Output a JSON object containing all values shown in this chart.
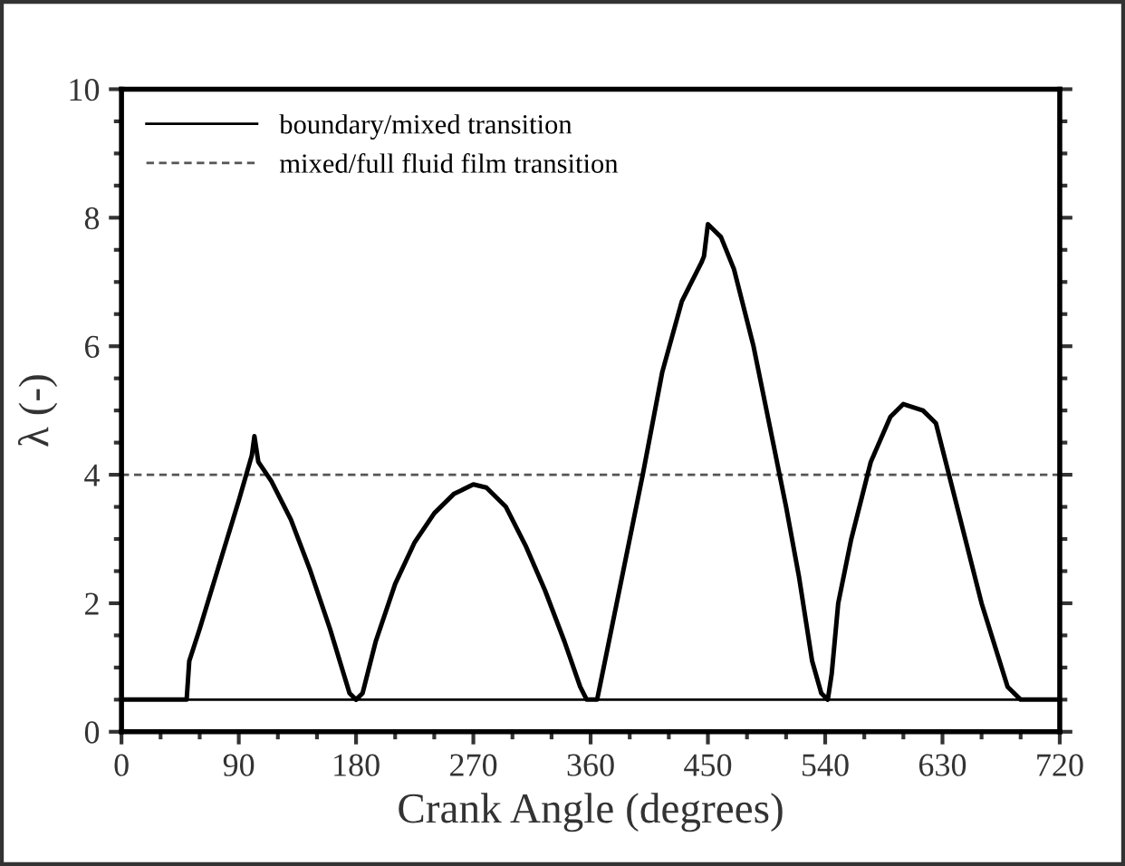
{
  "chart_data": {
    "type": "line",
    "xlabel": "Crank Angle (degrees)",
    "ylabel": "λ (-)",
    "series": [
      {
        "color": "#000000",
        "x": [
          0,
          50,
          52,
          60,
          75,
          90,
          100,
          102,
          105,
          115,
          130,
          145,
          160,
          175,
          180,
          185,
          195,
          210,
          225,
          240,
          255,
          270,
          280,
          295,
          310,
          325,
          340,
          352,
          357,
          365,
          372,
          385,
          400,
          415,
          430,
          445,
          447,
          450,
          460,
          470,
          485,
          500,
          510,
          520,
          530,
          537,
          542,
          545,
          550,
          560,
          575,
          590,
          600,
          615,
          625,
          640,
          660,
          680,
          690,
          720
        ],
        "values": [
          0.5,
          0.5,
          1.1,
          1.6,
          2.6,
          3.6,
          4.3,
          4.6,
          4.2,
          3.9,
          3.3,
          2.5,
          1.6,
          0.6,
          0.5,
          0.6,
          1.4,
          2.3,
          2.95,
          3.4,
          3.7,
          3.85,
          3.8,
          3.5,
          2.9,
          2.2,
          1.4,
          0.7,
          0.5,
          0.5,
          1.2,
          2.5,
          4.0,
          5.6,
          6.7,
          7.3,
          7.4,
          7.9,
          7.7,
          7.2,
          6.0,
          4.5,
          3.5,
          2.4,
          1.1,
          0.6,
          0.5,
          0.9,
          2.0,
          3.0,
          4.2,
          4.9,
          5.1,
          5.0,
          4.8,
          3.6,
          2.0,
          0.7,
          0.5,
          0.5
        ]
      }
    ],
    "ref_lines": [
      {
        "axis": "y",
        "value": 0.5,
        "label": "boundary/mixed transition",
        "color": "#000000",
        "line_style": "solid"
      },
      {
        "axis": "y",
        "value": 4,
        "label": "mixed/full fluid film transition",
        "color": "#555555",
        "line_style": "dashed"
      }
    ],
    "xlim": [
      0,
      720
    ],
    "ylim": [
      0,
      10
    ],
    "xticks": [
      0,
      {
        "value": 30,
        "label": null
      },
      {
        "value": 60,
        "label": null
      },
      90,
      {
        "value": 120,
        "label": null
      },
      {
        "value": 150,
        "label": null
      },
      180,
      {
        "value": 210,
        "label": null
      },
      {
        "value": 240,
        "label": null
      },
      270,
      {
        "value": 300,
        "label": null
      },
      {
        "value": 330,
        "label": null
      },
      360,
      {
        "value": 390,
        "label": null
      },
      {
        "value": 420,
        "label": null
      },
      450,
      {
        "value": 480,
        "label": null
      },
      {
        "value": 510,
        "label": null
      },
      540,
      {
        "value": 570,
        "label": null
      },
      {
        "value": 600,
        "label": null
      },
      630,
      {
        "value": 660,
        "label": null
      },
      {
        "value": 690,
        "label": null
      },
      720
    ],
    "yticks": [
      0,
      {
        "value": 0.5,
        "label": null
      },
      {
        "value": 1,
        "label": null
      },
      {
        "value": 1.5,
        "label": null
      },
      2,
      {
        "value": 2.5,
        "label": null
      },
      {
        "value": 3,
        "label": null
      },
      {
        "value": 3.5,
        "label": null
      },
      4,
      {
        "value": 4.5,
        "label": null
      },
      {
        "value": 5,
        "label": null
      },
      {
        "value": 5.5,
        "label": null
      },
      6,
      {
        "value": 6.5,
        "label": null
      },
      {
        "value": 7,
        "label": null
      },
      {
        "value": 7.5,
        "label": null
      },
      8,
      {
        "value": 8.5,
        "label": null
      },
      {
        "value": 9,
        "label": null
      },
      {
        "value": 9.5,
        "label": null
      },
      10
    ],
    "grid": false,
    "legend": "top left",
    "marker": "none",
    "line_style": "solid"
  }
}
